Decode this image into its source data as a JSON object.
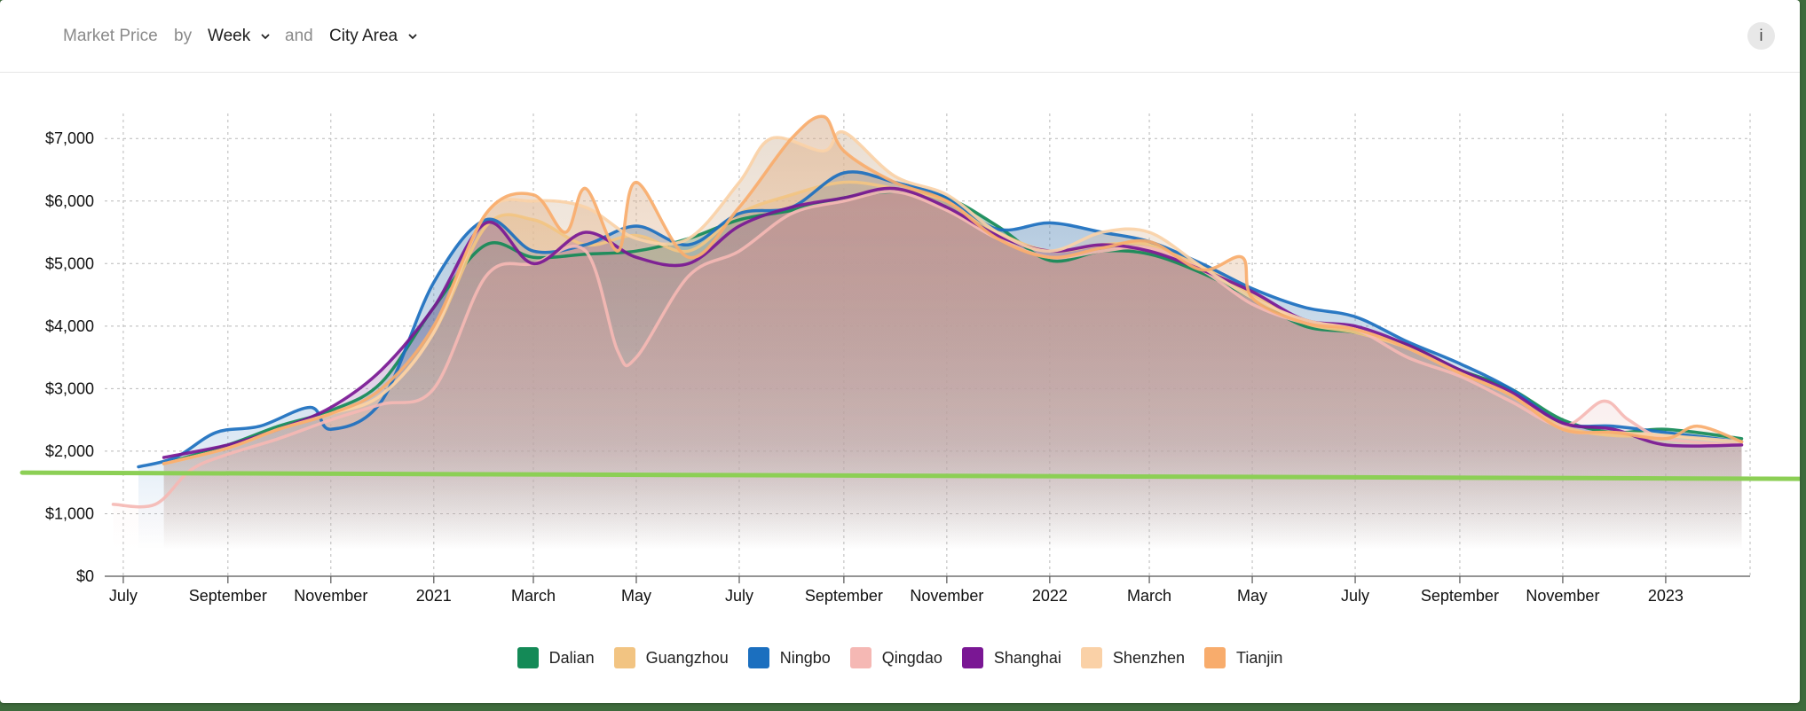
{
  "toolbar": {
    "metric_label": "Market Price",
    "by_label": "by",
    "period_value": "Week",
    "and_label": "and",
    "group_value": "City Area",
    "info_label": "i"
  },
  "chart_data": {
    "type": "line",
    "title": "Market Price by Week and City Area",
    "xlabel": "",
    "ylabel": "",
    "ylim": [
      0,
      7400
    ],
    "yticks": [
      0,
      1000,
      2000,
      3000,
      4000,
      5000,
      6000,
      7000
    ],
    "ytick_labels": [
      "$0",
      "$1,000",
      "$2,000",
      "$3,000",
      "$4,000",
      "$5,000",
      "$6,000",
      "$7,000"
    ],
    "xlim": [
      "2020-06-20",
      "2023-02-20"
    ],
    "xticks": [
      {
        "date": "2020-07-01",
        "label": "July"
      },
      {
        "date": "2020-09-01",
        "label": "September"
      },
      {
        "date": "2020-11-01",
        "label": "November"
      },
      {
        "date": "2021-01-01",
        "label": "2021"
      },
      {
        "date": "2021-03-01",
        "label": "March"
      },
      {
        "date": "2021-05-01",
        "label": "May"
      },
      {
        "date": "2021-07-01",
        "label": "July"
      },
      {
        "date": "2021-09-01",
        "label": "September"
      },
      {
        "date": "2021-11-01",
        "label": "November"
      },
      {
        "date": "2022-01-01",
        "label": "2022"
      },
      {
        "date": "2022-03-01",
        "label": "March"
      },
      {
        "date": "2022-05-01",
        "label": "May"
      },
      {
        "date": "2022-07-01",
        "label": "July"
      },
      {
        "date": "2022-09-01",
        "label": "September"
      },
      {
        "date": "2022-11-01",
        "label": "November"
      },
      {
        "date": "2023-01-01",
        "label": "2023"
      }
    ],
    "grid": true,
    "legend_position": "bottom",
    "reference_line": {
      "value": 1600,
      "color": "#8ccf55"
    },
    "series": [
      {
        "name": "Dalian",
        "color": "#148a57",
        "points": [
          [
            "2020-07-25",
            1800
          ],
          [
            "2020-09-01",
            2100
          ],
          [
            "2020-10-01",
            2400
          ],
          [
            "2020-11-01",
            2650
          ],
          [
            "2020-12-01",
            3100
          ],
          [
            "2021-01-01",
            4300
          ],
          [
            "2021-02-01",
            5300
          ],
          [
            "2021-03-01",
            5100
          ],
          [
            "2021-04-01",
            5150
          ],
          [
            "2021-05-01",
            5200
          ],
          [
            "2021-06-01",
            5400
          ],
          [
            "2021-07-01",
            5700
          ],
          [
            "2021-08-01",
            5850
          ],
          [
            "2021-09-01",
            6050
          ],
          [
            "2021-10-01",
            6150
          ],
          [
            "2021-11-01",
            6050
          ],
          [
            "2021-12-01",
            5600
          ],
          [
            "2022-01-01",
            5050
          ],
          [
            "2022-02-01",
            5200
          ],
          [
            "2022-03-01",
            5150
          ],
          [
            "2022-04-01",
            4850
          ],
          [
            "2022-05-01",
            4450
          ],
          [
            "2022-06-01",
            4000
          ],
          [
            "2022-07-01",
            3900
          ],
          [
            "2022-08-01",
            3700
          ],
          [
            "2022-09-01",
            3300
          ],
          [
            "2022-10-01",
            3000
          ],
          [
            "2022-11-01",
            2500
          ],
          [
            "2022-12-01",
            2300
          ],
          [
            "2023-01-01",
            2350
          ],
          [
            "2023-02-15",
            2200
          ]
        ]
      },
      {
        "name": "Guangzhou",
        "color": "#f2c482",
        "points": [
          [
            "2020-07-25",
            1800
          ],
          [
            "2020-09-01",
            2050
          ],
          [
            "2020-10-01",
            2350
          ],
          [
            "2020-11-01",
            2600
          ],
          [
            "2020-12-01",
            2900
          ],
          [
            "2021-01-01",
            3900
          ],
          [
            "2021-02-01",
            5600
          ],
          [
            "2021-03-01",
            5700
          ],
          [
            "2021-04-01",
            5300
          ],
          [
            "2021-05-01",
            5450
          ],
          [
            "2021-06-01",
            5200
          ],
          [
            "2021-07-01",
            5800
          ],
          [
            "2021-08-01",
            6100
          ],
          [
            "2021-09-01",
            6300
          ],
          [
            "2021-10-01",
            6200
          ],
          [
            "2021-11-01",
            6000
          ],
          [
            "2021-12-01",
            5500
          ],
          [
            "2022-01-01",
            5200
          ],
          [
            "2022-02-01",
            5300
          ],
          [
            "2022-03-01",
            5300
          ],
          [
            "2022-04-01",
            4950
          ],
          [
            "2022-05-01",
            4500
          ],
          [
            "2022-06-01",
            4050
          ],
          [
            "2022-07-01",
            3900
          ],
          [
            "2022-08-01",
            3650
          ],
          [
            "2022-09-01",
            3250
          ],
          [
            "2022-10-01",
            2900
          ],
          [
            "2022-11-01",
            2400
          ],
          [
            "2022-12-01",
            2250
          ],
          [
            "2023-01-01",
            2250
          ],
          [
            "2023-02-15",
            2150
          ]
        ]
      },
      {
        "name": "Ningbo",
        "color": "#1b6fbf",
        "points": [
          [
            "2020-07-10",
            1750
          ],
          [
            "2020-08-01",
            1900
          ],
          [
            "2020-08-25",
            2300
          ],
          [
            "2020-09-20",
            2400
          ],
          [
            "2020-10-20",
            2700
          ],
          [
            "2020-11-01",
            2350
          ],
          [
            "2020-12-01",
            2800
          ],
          [
            "2021-01-01",
            4700
          ],
          [
            "2021-02-01",
            5700
          ],
          [
            "2021-03-01",
            5200
          ],
          [
            "2021-04-01",
            5300
          ],
          [
            "2021-05-01",
            5600
          ],
          [
            "2021-06-01",
            5300
          ],
          [
            "2021-07-01",
            5800
          ],
          [
            "2021-08-01",
            5900
          ],
          [
            "2021-09-01",
            6450
          ],
          [
            "2021-10-01",
            6300
          ],
          [
            "2021-11-01",
            6050
          ],
          [
            "2021-12-01",
            5550
          ],
          [
            "2022-01-01",
            5650
          ],
          [
            "2022-02-01",
            5500
          ],
          [
            "2022-03-01",
            5350
          ],
          [
            "2022-04-01",
            5000
          ],
          [
            "2022-05-01",
            4600
          ],
          [
            "2022-06-01",
            4300
          ],
          [
            "2022-07-01",
            4150
          ],
          [
            "2022-08-01",
            3750
          ],
          [
            "2022-09-01",
            3400
          ],
          [
            "2022-10-01",
            3000
          ],
          [
            "2022-11-01",
            2450
          ],
          [
            "2022-12-01",
            2400
          ],
          [
            "2023-01-01",
            2300
          ],
          [
            "2023-02-15",
            2150
          ]
        ]
      },
      {
        "name": "Qingdao",
        "color": "#f5b8b4",
        "points": [
          [
            "2020-06-25",
            1150
          ],
          [
            "2020-07-20",
            1150
          ],
          [
            "2020-08-10",
            1700
          ],
          [
            "2020-09-01",
            1950
          ],
          [
            "2020-10-01",
            2200
          ],
          [
            "2020-11-01",
            2500
          ],
          [
            "2020-12-01",
            2750
          ],
          [
            "2021-01-01",
            3000
          ],
          [
            "2021-02-01",
            4800
          ],
          [
            "2021-03-01",
            5000
          ],
          [
            "2021-04-01",
            5200
          ],
          [
            "2021-04-20",
            3600
          ],
          [
            "2021-05-01",
            3500
          ],
          [
            "2021-06-01",
            4800
          ],
          [
            "2021-07-01",
            5200
          ],
          [
            "2021-08-01",
            5800
          ],
          [
            "2021-09-01",
            6000
          ],
          [
            "2021-10-01",
            6150
          ],
          [
            "2021-11-01",
            5850
          ],
          [
            "2021-12-01",
            5400
          ],
          [
            "2022-01-01",
            5100
          ],
          [
            "2022-02-01",
            5200
          ],
          [
            "2022-03-01",
            5250
          ],
          [
            "2022-04-01",
            4900
          ],
          [
            "2022-05-01",
            4350
          ],
          [
            "2022-06-01",
            4050
          ],
          [
            "2022-07-01",
            3950
          ],
          [
            "2022-08-01",
            3500
          ],
          [
            "2022-09-01",
            3200
          ],
          [
            "2022-10-01",
            2800
          ],
          [
            "2022-11-01",
            2400
          ],
          [
            "2022-11-25",
            2800
          ],
          [
            "2022-12-10",
            2500
          ],
          [
            "2023-01-01",
            2200
          ],
          [
            "2023-02-15",
            2100
          ]
        ]
      },
      {
        "name": "Shanghai",
        "color": "#7a1794",
        "points": [
          [
            "2020-07-25",
            1900
          ],
          [
            "2020-09-01",
            2100
          ],
          [
            "2020-10-01",
            2350
          ],
          [
            "2020-11-01",
            2700
          ],
          [
            "2020-12-01",
            3300
          ],
          [
            "2021-01-01",
            4300
          ],
          [
            "2021-02-01",
            5650
          ],
          [
            "2021-03-01",
            5000
          ],
          [
            "2021-04-01",
            5500
          ],
          [
            "2021-05-01",
            5100
          ],
          [
            "2021-06-01",
            5000
          ],
          [
            "2021-07-01",
            5600
          ],
          [
            "2021-08-01",
            5900
          ],
          [
            "2021-09-01",
            6050
          ],
          [
            "2021-10-01",
            6200
          ],
          [
            "2021-11-01",
            5900
          ],
          [
            "2021-12-01",
            5450
          ],
          [
            "2022-01-01",
            5200
          ],
          [
            "2022-02-01",
            5300
          ],
          [
            "2022-03-01",
            5200
          ],
          [
            "2022-04-01",
            4900
          ],
          [
            "2022-05-01",
            4550
          ],
          [
            "2022-06-01",
            4100
          ],
          [
            "2022-07-01",
            4000
          ],
          [
            "2022-08-01",
            3700
          ],
          [
            "2022-09-01",
            3300
          ],
          [
            "2022-10-01",
            2950
          ],
          [
            "2022-11-01",
            2450
          ],
          [
            "2022-12-01",
            2350
          ],
          [
            "2023-01-01",
            2100
          ],
          [
            "2023-02-15",
            2100
          ]
        ]
      },
      {
        "name": "Shenzhen",
        "color": "#fad1a7",
        "points": [
          [
            "2020-07-25",
            1800
          ],
          [
            "2020-09-01",
            2050
          ],
          [
            "2020-10-01",
            2350
          ],
          [
            "2020-11-01",
            2600
          ],
          [
            "2020-12-01",
            2900
          ],
          [
            "2021-01-01",
            3900
          ],
          [
            "2021-02-01",
            5800
          ],
          [
            "2021-03-01",
            6000
          ],
          [
            "2021-04-01",
            5900
          ],
          [
            "2021-05-01",
            5400
          ],
          [
            "2021-06-01",
            5400
          ],
          [
            "2021-07-01",
            6300
          ],
          [
            "2021-07-20",
            7000
          ],
          [
            "2021-08-20",
            6800
          ],
          [
            "2021-09-01",
            7100
          ],
          [
            "2021-10-01",
            6400
          ],
          [
            "2021-11-01",
            6100
          ],
          [
            "2021-12-01",
            5500
          ],
          [
            "2022-01-01",
            5200
          ],
          [
            "2022-02-01",
            5500
          ],
          [
            "2022-03-01",
            5500
          ],
          [
            "2022-04-01",
            4950
          ],
          [
            "2022-05-01",
            4450
          ],
          [
            "2022-06-01",
            4100
          ],
          [
            "2022-07-01",
            3950
          ],
          [
            "2022-08-01",
            3650
          ],
          [
            "2022-09-01",
            3250
          ],
          [
            "2022-10-01",
            2900
          ],
          [
            "2022-11-01",
            2350
          ],
          [
            "2022-12-01",
            2300
          ],
          [
            "2023-01-01",
            2250
          ],
          [
            "2023-02-15",
            2150
          ]
        ]
      },
      {
        "name": "Tianjin",
        "color": "#f8ac6c",
        "points": [
          [
            "2020-07-25",
            1800
          ],
          [
            "2020-09-01",
            2050
          ],
          [
            "2020-10-01",
            2350
          ],
          [
            "2020-11-01",
            2600
          ],
          [
            "2020-12-01",
            3000
          ],
          [
            "2021-01-01",
            4000
          ],
          [
            "2021-02-01",
            5800
          ],
          [
            "2021-03-01",
            6100
          ],
          [
            "2021-03-20",
            5500
          ],
          [
            "2021-04-01",
            6200
          ],
          [
            "2021-04-20",
            5200
          ],
          [
            "2021-05-01",
            6300
          ],
          [
            "2021-06-01",
            5100
          ],
          [
            "2021-07-01",
            5900
          ],
          [
            "2021-08-01",
            7000
          ],
          [
            "2021-08-20",
            7350
          ],
          [
            "2021-09-01",
            6800
          ],
          [
            "2021-10-01",
            6300
          ],
          [
            "2021-11-01",
            6000
          ],
          [
            "2021-12-01",
            5400
          ],
          [
            "2022-01-01",
            5100
          ],
          [
            "2022-02-01",
            5250
          ],
          [
            "2022-03-01",
            5350
          ],
          [
            "2022-04-01",
            4900
          ],
          [
            "2022-04-25",
            5100
          ],
          [
            "2022-05-01",
            4450
          ],
          [
            "2022-06-01",
            4050
          ],
          [
            "2022-07-01",
            3950
          ],
          [
            "2022-08-01",
            3650
          ],
          [
            "2022-09-01",
            3250
          ],
          [
            "2022-10-01",
            2900
          ],
          [
            "2022-11-01",
            2350
          ],
          [
            "2022-12-01",
            2300
          ],
          [
            "2023-01-01",
            2200
          ],
          [
            "2023-01-20",
            2400
          ],
          [
            "2023-02-15",
            2150
          ]
        ]
      }
    ]
  }
}
